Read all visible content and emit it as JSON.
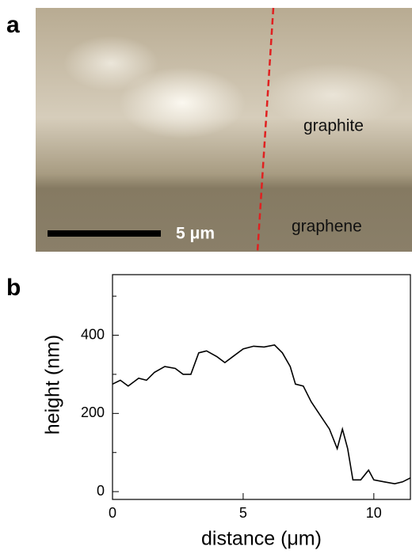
{
  "panel_a": {
    "label": "a",
    "region_top": "graphite",
    "region_bottom": "graphene",
    "scale_bar": "5 μm"
  },
  "chart_data": {
    "type": "line",
    "panel_label": "b",
    "x_label": "distance (μm)",
    "y_label": "height (nm)",
    "x": [
      0,
      0.3,
      0.6,
      1.0,
      1.3,
      1.6,
      2.0,
      2.4,
      2.7,
      3.0,
      3.3,
      3.6,
      4.0,
      4.3,
      4.6,
      5.0,
      5.4,
      5.8,
      6.2,
      6.5,
      6.8,
      7.0,
      7.3,
      7.6,
      8.0,
      8.3,
      8.6,
      8.8,
      9.0,
      9.2,
      9.5,
      9.8,
      10.0,
      10.4,
      10.8,
      11.1,
      11.4
    ],
    "values": [
      275,
      285,
      270,
      290,
      285,
      305,
      320,
      315,
      300,
      300,
      355,
      360,
      345,
      330,
      345,
      365,
      372,
      370,
      375,
      355,
      320,
      275,
      270,
      230,
      190,
      160,
      110,
      160,
      110,
      30,
      30,
      55,
      30,
      25,
      20,
      25,
      35
    ],
    "color": "#000000",
    "xlim": [
      0,
      11.4
    ],
    "xticks": [
      0,
      5,
      10
    ],
    "ylim": [
      -20,
      555
    ],
    "yticks": [
      0,
      200,
      400
    ],
    "minor_yticks": [
      100,
      300,
      500
    ]
  }
}
